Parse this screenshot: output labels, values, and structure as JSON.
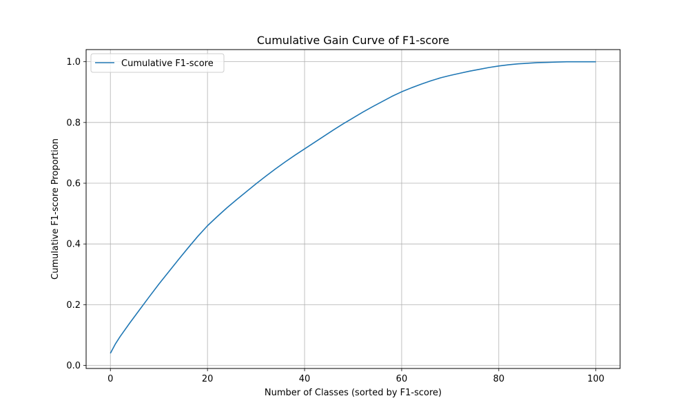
{
  "chart_data": {
    "type": "line",
    "title": "Cumulative Gain Curve of F1-score",
    "xlabel": "Number of Classes (sorted by F1-score)",
    "ylabel": "Cumulative F1-score Proportion",
    "xlim": [
      -5,
      105
    ],
    "ylim": [
      -0.01,
      1.04
    ],
    "xticks": [
      0,
      20,
      40,
      60,
      80,
      100
    ],
    "xtick_labels": [
      "0",
      "20",
      "40",
      "60",
      "80",
      "100"
    ],
    "yticks": [
      0.0,
      0.2,
      0.4,
      0.6,
      0.8,
      1.0
    ],
    "ytick_labels": [
      "0.0",
      "0.2",
      "0.4",
      "0.6",
      "0.8",
      "1.0"
    ],
    "grid": true,
    "legend_position": "top-left",
    "series": [
      {
        "name": "Cumulative F1-score",
        "color": "#1f77b4",
        "x": [
          0,
          1,
          2,
          4,
          6,
          8,
          10,
          12,
          14,
          16,
          18,
          20,
          22,
          24,
          26,
          28,
          30,
          32,
          34,
          36,
          38,
          40,
          42,
          44,
          46,
          48,
          50,
          52,
          54,
          56,
          58,
          60,
          62,
          64,
          66,
          68,
          70,
          72,
          74,
          76,
          78,
          80,
          82,
          84,
          86,
          88,
          90,
          92,
          94,
          96,
          98,
          100
        ],
        "y": [
          0.04,
          0.07,
          0.095,
          0.14,
          0.183,
          0.226,
          0.268,
          0.308,
          0.348,
          0.387,
          0.425,
          0.46,
          0.49,
          0.519,
          0.546,
          0.572,
          0.598,
          0.623,
          0.647,
          0.67,
          0.692,
          0.713,
          0.734,
          0.755,
          0.776,
          0.796,
          0.815,
          0.834,
          0.852,
          0.869,
          0.886,
          0.901,
          0.914,
          0.926,
          0.937,
          0.947,
          0.955,
          0.962,
          0.969,
          0.975,
          0.981,
          0.986,
          0.99,
          0.993,
          0.995,
          0.997,
          0.998,
          0.999,
          1.0,
          1.0,
          1.0,
          1.0
        ]
      }
    ]
  }
}
